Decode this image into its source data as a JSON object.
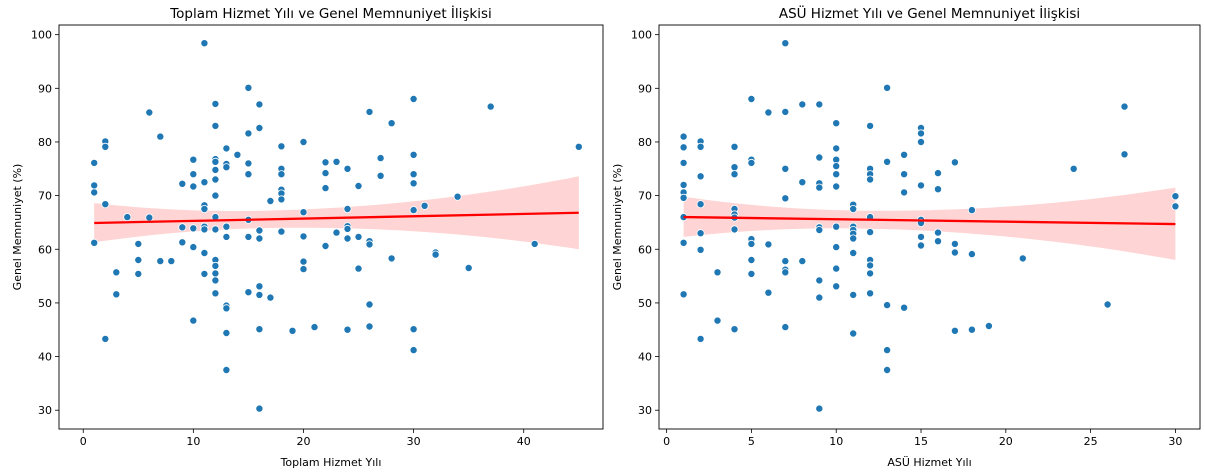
{
  "chart_data": [
    {
      "type": "scatter",
      "title": "Toplam Hizmet Yılı ve Genel Memnuniyet İlişkisi",
      "xlabel": "Toplam Hizmet Yılı",
      "ylabel": "Genel Memnuniyet (%)",
      "xlim": [
        -2.2,
        47.2
      ],
      "ylim": [
        26.5,
        101.8
      ],
      "xticks": [
        0,
        10,
        20,
        30,
        40
      ],
      "yticks": [
        30,
        40,
        50,
        60,
        70,
        80,
        90,
        100
      ],
      "grid": false,
      "point_color": "#1f77b4",
      "regression": {
        "color": "#ff0000",
        "band_color": "#ffcccc",
        "x": [
          1,
          45
        ],
        "y": [
          64.9,
          66.8
        ],
        "ci_lower": [
          61.3,
          60.0
        ],
        "ci_upper": [
          68.6,
          73.6
        ]
      },
      "points": [
        [
          1,
          76.1
        ],
        [
          1,
          71.9
        ],
        [
          1,
          70.6
        ],
        [
          1,
          61.2
        ],
        [
          2,
          80.1
        ],
        [
          2,
          79.1
        ],
        [
          2,
          68.4
        ],
        [
          2,
          43.3
        ],
        [
          3,
          55.7
        ],
        [
          3,
          51.6
        ],
        [
          4,
          66.0
        ],
        [
          5,
          61.0
        ],
        [
          5,
          58.0
        ],
        [
          5,
          55.4
        ],
        [
          6,
          85.5
        ],
        [
          6,
          65.9
        ],
        [
          7,
          81.0
        ],
        [
          7,
          57.8
        ],
        [
          8,
          57.8
        ],
        [
          9,
          72.2
        ],
        [
          9,
          64.1
        ],
        [
          9,
          61.3
        ],
        [
          10,
          76.7
        ],
        [
          10,
          74.0
        ],
        [
          10,
          71.7
        ],
        [
          10,
          63.9
        ],
        [
          10,
          60.4
        ],
        [
          10,
          46.7
        ],
        [
          11,
          98.4
        ],
        [
          11,
          72.5
        ],
        [
          11,
          68.2
        ],
        [
          11,
          67.5
        ],
        [
          11,
          64.2
        ],
        [
          11,
          63.7
        ],
        [
          11,
          59.3
        ],
        [
          11,
          55.4
        ],
        [
          12,
          87.1
        ],
        [
          12,
          83.0
        ],
        [
          12,
          76.8
        ],
        [
          12,
          76.3
        ],
        [
          12,
          74.8
        ],
        [
          12,
          73.0
        ],
        [
          12,
          70.0
        ],
        [
          12,
          66.0
        ],
        [
          12,
          63.7
        ],
        [
          12,
          58.0
        ],
        [
          12,
          56.9
        ],
        [
          12,
          55.5
        ],
        [
          12,
          54.2
        ],
        [
          12,
          51.8
        ],
        [
          13,
          78.8
        ],
        [
          13,
          75.9
        ],
        [
          13,
          75.3
        ],
        [
          13,
          64.2
        ],
        [
          13,
          62.3
        ],
        [
          13,
          49.5
        ],
        [
          13,
          49.0
        ],
        [
          13,
          44.4
        ],
        [
          13,
          37.5
        ],
        [
          14,
          77.6
        ],
        [
          15,
          90.1
        ],
        [
          15,
          81.6
        ],
        [
          15,
          76.0
        ],
        [
          15,
          74.0
        ],
        [
          15,
          65.5
        ],
        [
          15,
          62.3
        ],
        [
          15,
          52.0
        ],
        [
          16,
          87.0
        ],
        [
          16,
          82.6
        ],
        [
          16,
          63.5
        ],
        [
          16,
          62.0
        ],
        [
          16,
          53.1
        ],
        [
          16,
          51.5
        ],
        [
          16,
          45.1
        ],
        [
          16,
          30.3
        ],
        [
          17,
          69.0
        ],
        [
          17,
          51.0
        ],
        [
          18,
          79.2
        ],
        [
          18,
          75.0
        ],
        [
          18,
          74.0
        ],
        [
          18,
          71.1
        ],
        [
          18,
          70.4
        ],
        [
          18,
          69.3
        ],
        [
          18,
          63.3
        ],
        [
          19,
          44.8
        ],
        [
          20,
          80.0
        ],
        [
          20,
          66.9
        ],
        [
          20,
          62.4
        ],
        [
          20,
          57.7
        ],
        [
          20,
          56.3
        ],
        [
          21,
          45.5
        ],
        [
          22,
          76.2
        ],
        [
          22,
          74.2
        ],
        [
          22,
          71.4
        ],
        [
          22,
          60.6
        ],
        [
          23,
          76.3
        ],
        [
          23,
          63.1
        ],
        [
          24,
          75.0
        ],
        [
          24,
          67.5
        ],
        [
          24,
          64.3
        ],
        [
          24,
          63.8
        ],
        [
          24,
          62.0
        ],
        [
          24,
          45.0
        ],
        [
          25,
          71.8
        ],
        [
          25,
          62.3
        ],
        [
          25,
          56.4
        ],
        [
          26,
          85.6
        ],
        [
          26,
          61.5
        ],
        [
          26,
          60.9
        ],
        [
          26,
          49.7
        ],
        [
          26,
          45.6
        ],
        [
          27,
          77.0
        ],
        [
          27,
          73.7
        ],
        [
          28,
          83.5
        ],
        [
          28,
          58.3
        ],
        [
          30,
          88.0
        ],
        [
          30,
          77.6
        ],
        [
          30,
          74.0
        ],
        [
          30,
          72.3
        ],
        [
          30,
          67.3
        ],
        [
          30,
          45.1
        ],
        [
          30,
          41.2
        ],
        [
          31,
          68.1
        ],
        [
          32,
          59.4
        ],
        [
          32,
          59.0
        ],
        [
          34,
          69.8
        ],
        [
          35,
          56.5
        ],
        [
          37,
          86.6
        ],
        [
          41,
          61.0
        ],
        [
          45,
          79.1
        ]
      ]
    },
    {
      "type": "scatter",
      "title": "ASÜ Hizmet Yılı ve Genel Memnuniyet İlişkisi",
      "xlabel": "ASÜ Hizmet Yılı",
      "ylabel": "Genel Memnuniyet (%)",
      "xlim": [
        -0.45,
        31.45
      ],
      "ylim": [
        26.5,
        101.8
      ],
      "xticks": [
        0,
        5,
        10,
        15,
        20,
        25,
        30
      ],
      "yticks": [
        30,
        40,
        50,
        60,
        70,
        80,
        90,
        100
      ],
      "grid": false,
      "point_color": "#1f77b4",
      "regression": {
        "color": "#ff0000",
        "band_color": "#ffcccc",
        "x": [
          1,
          30
        ],
        "y": [
          66.0,
          64.7
        ],
        "ci_lower": [
          62.3,
          58.0
        ],
        "ci_upper": [
          69.8,
          71.5
        ]
      },
      "points": [
        [
          1,
          81.0
        ],
        [
          1,
          79.0
        ],
        [
          1,
          76.1
        ],
        [
          1,
          72.0
        ],
        [
          1,
          70.6
        ],
        [
          1,
          69.6
        ],
        [
          1,
          66.0
        ],
        [
          1,
          61.2
        ],
        [
          1,
          51.6
        ],
        [
          2,
          80.1
        ],
        [
          2,
          79.1
        ],
        [
          2,
          73.6
        ],
        [
          2,
          68.4
        ],
        [
          2,
          63.0
        ],
        [
          2,
          59.9
        ],
        [
          2,
          43.3
        ],
        [
          3,
          55.7
        ],
        [
          3,
          46.7
        ],
        [
          4,
          79.1
        ],
        [
          4,
          75.3
        ],
        [
          4,
          74.0
        ],
        [
          4,
          67.5
        ],
        [
          4,
          66.5
        ],
        [
          4,
          65.9
        ],
        [
          4,
          63.7
        ],
        [
          4,
          45.1
        ],
        [
          5,
          88.0
        ],
        [
          5,
          76.7
        ],
        [
          5,
          76.1
        ],
        [
          5,
          61.9
        ],
        [
          5,
          61.0
        ],
        [
          5,
          58.0
        ],
        [
          5,
          55.4
        ],
        [
          6,
          85.5
        ],
        [
          6,
          60.9
        ],
        [
          6,
          51.9
        ],
        [
          7,
          98.4
        ],
        [
          7,
          85.6
        ],
        [
          7,
          75.0
        ],
        [
          7,
          69.5
        ],
        [
          7,
          57.8
        ],
        [
          7,
          56.2
        ],
        [
          7,
          55.7
        ],
        [
          7,
          45.5
        ],
        [
          8,
          87.0
        ],
        [
          8,
          72.5
        ],
        [
          8,
          57.8
        ],
        [
          9,
          87.0
        ],
        [
          9,
          77.1
        ],
        [
          9,
          72.3
        ],
        [
          9,
          71.5
        ],
        [
          9,
          64.1
        ],
        [
          9,
          63.6
        ],
        [
          9,
          54.2
        ],
        [
          9,
          51.0
        ],
        [
          9,
          30.3
        ],
        [
          10,
          83.5
        ],
        [
          10,
          78.8
        ],
        [
          10,
          76.7
        ],
        [
          10,
          75.5
        ],
        [
          10,
          74.0
        ],
        [
          10,
          71.7
        ],
        [
          10,
          64.2
        ],
        [
          10,
          60.4
        ],
        [
          10,
          56.4
        ],
        [
          10,
          53.1
        ],
        [
          11,
          68.3
        ],
        [
          11,
          67.5
        ],
        [
          11,
          64.2
        ],
        [
          11,
          63.6
        ],
        [
          11,
          62.9
        ],
        [
          11,
          62.0
        ],
        [
          11,
          59.3
        ],
        [
          11,
          51.5
        ],
        [
          11,
          44.3
        ],
        [
          12,
          83.0
        ],
        [
          12,
          75.0
        ],
        [
          12,
          74.0
        ],
        [
          12,
          73.0
        ],
        [
          12,
          66.0
        ],
        [
          12,
          63.2
        ],
        [
          12,
          58.0
        ],
        [
          12,
          57.0
        ],
        [
          12,
          55.5
        ],
        [
          12,
          51.8
        ],
        [
          13,
          90.1
        ],
        [
          13,
          76.3
        ],
        [
          13,
          49.6
        ],
        [
          13,
          41.2
        ],
        [
          13,
          37.5
        ],
        [
          14,
          77.6
        ],
        [
          14,
          74.0
        ],
        [
          14,
          70.6
        ],
        [
          14,
          49.1
        ],
        [
          15,
          82.6
        ],
        [
          15,
          81.6
        ],
        [
          15,
          80.0
        ],
        [
          15,
          71.9
        ],
        [
          15,
          65.5
        ],
        [
          15,
          64.9
        ],
        [
          15,
          62.3
        ],
        [
          15,
          60.7
        ],
        [
          16,
          74.2
        ],
        [
          16,
          71.2
        ],
        [
          16,
          63.1
        ],
        [
          16,
          61.5
        ],
        [
          17,
          76.2
        ],
        [
          17,
          61.0
        ],
        [
          17,
          59.4
        ],
        [
          17,
          44.8
        ],
        [
          18,
          67.3
        ],
        [
          18,
          59.1
        ],
        [
          18,
          45.0
        ],
        [
          19,
          45.7
        ],
        [
          21,
          58.3
        ],
        [
          24,
          75.0
        ],
        [
          26,
          49.7
        ],
        [
          27,
          86.6
        ],
        [
          27,
          77.7
        ],
        [
          30,
          69.9
        ],
        [
          30,
          68.0
        ]
      ]
    }
  ]
}
